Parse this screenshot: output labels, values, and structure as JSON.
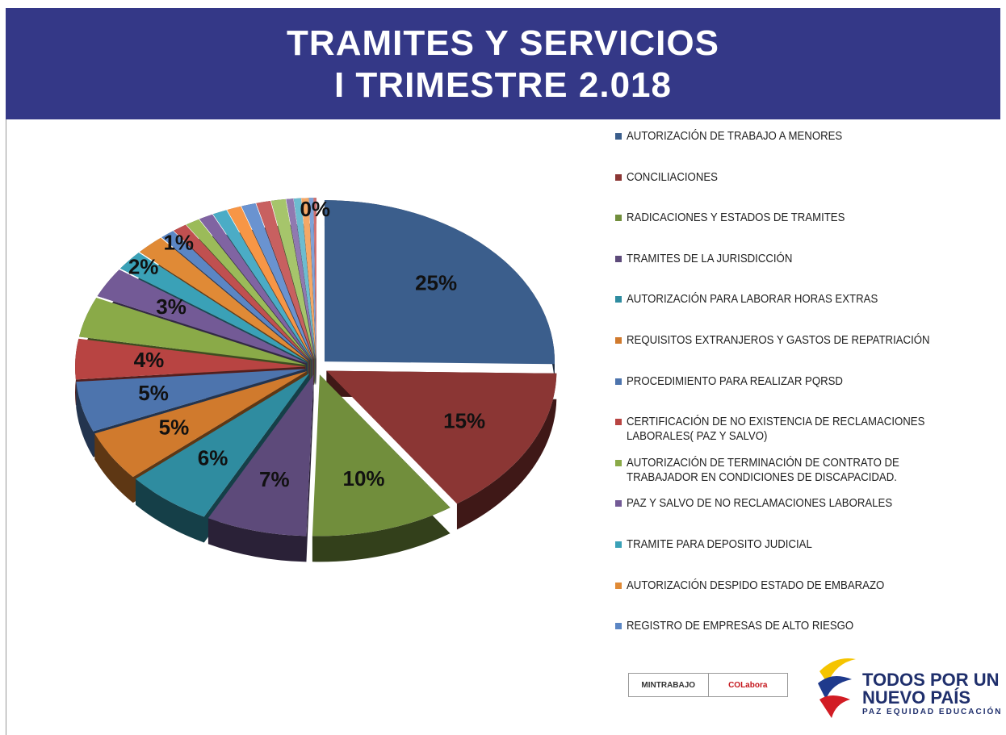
{
  "chart_data": {
    "type": "pie",
    "title": [
      "TRAMITES Y SERVICIOS",
      "I TRIMESTRE 2.018"
    ],
    "categories": [
      "AUTORIZACIÓN DE TRABAJO A MENORES",
      "CONCILIACIONES",
      "RADICACIONES Y ESTADOS DE TRAMITES",
      "TRAMITES DE LA JURISDICCIÓN",
      "AUTORIZACIÓN PARA LABORAR HORAS EXTRAS",
      "REQUISITOS EXTRANJEROS Y GASTOS DE REPATRIACIÓN",
      "PROCEDIMIENTO PARA REALIZAR PQRSD",
      "CERTIFICACIÓN DE NO EXISTENCIA DE RECLAMACIONES LABORALES( PAZ Y SALVO)",
      "AUTORIZACIÓN DE TERMINACIÓN DE CONTRATO DE TRABAJADOR EN CONDICIONES DE DISCAPACIDAD.",
      "PAZ Y SALVO DE NO RECLAMACIONES LABORALES",
      "TRAMITE PARA DEPOSITO JUDICIAL",
      "AUTORIZACIÓN DESPIDO ESTADO DE EMBARAZO",
      "REGISTRO DE EMPRESAS DE ALTO RIESGO",
      null,
      null,
      null,
      null,
      null,
      null,
      null,
      null,
      null,
      null,
      null,
      null,
      null
    ],
    "values": [
      25,
      15,
      10,
      7,
      6,
      5,
      5,
      4,
      4,
      3,
      2,
      2,
      1,
      1,
      1,
      1,
      1,
      1,
      1,
      1,
      1,
      0.5,
      0.5,
      0.5,
      0.3,
      0.2
    ],
    "value_labels": [
      "25%",
      "15%",
      "10%",
      "7%",
      "6%",
      "5%",
      "5%",
      "4%",
      null,
      "3%",
      "2%",
      null,
      "1%",
      null,
      null,
      null,
      null,
      null,
      null,
      null,
      null,
      null,
      null,
      null,
      null,
      "0%"
    ],
    "colors": [
      "#3b5e8c",
      "#8b3634",
      "#718e3c",
      "#5d4a7a",
      "#2f8ca0",
      "#d07a2d",
      "#4d74ad",
      "#b84442",
      "#8aaa48",
      "#735a96",
      "#3aa1b7",
      "#e08a36",
      "#5b86c4",
      "#c05050",
      "#9bbb59",
      "#8064a2",
      "#4bacc6",
      "#f79646",
      "#6a93d0",
      "#c86060",
      "#a6c56b",
      "#9079b0",
      "#6cbcd0",
      "#f4a866",
      "#7ea2d8",
      "#d07070"
    ],
    "logos": [
      "MINTRABAJO",
      "COLabora",
      "TODOS POR UN",
      "NUEVO PAÍS",
      "PAZ  EQUIDAD  EDUCACIÓN"
    ]
  }
}
